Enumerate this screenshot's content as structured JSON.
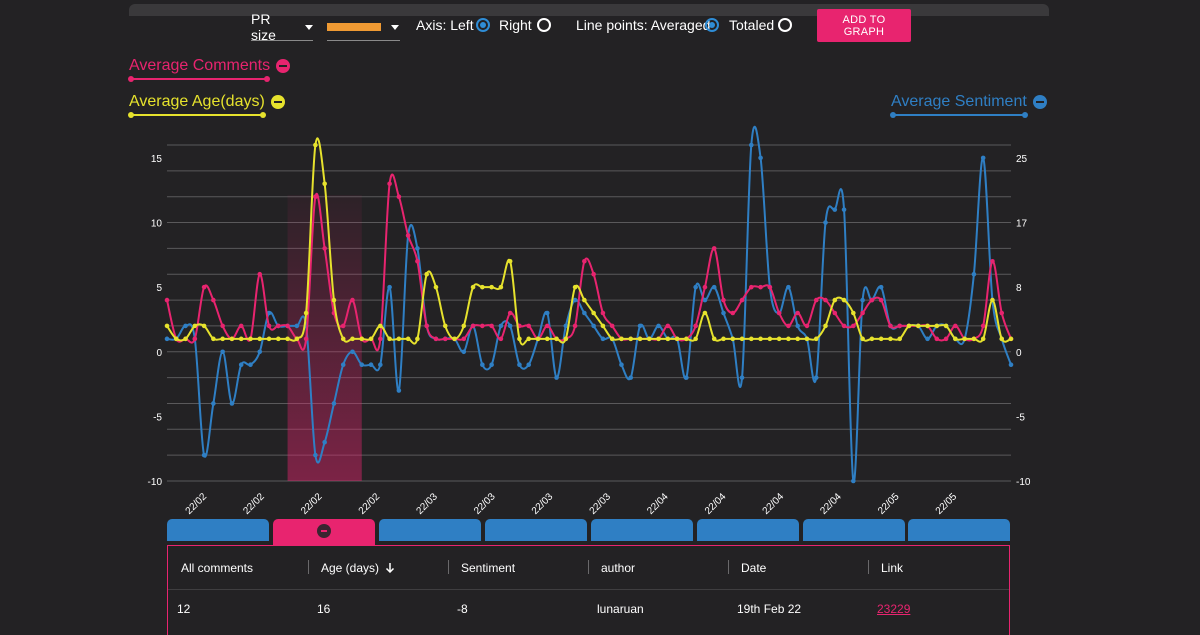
{
  "toolbar": {
    "pr_size_label": "PR size",
    "color_swatch": "#ef9a33",
    "axis_label": "Axis: Left",
    "axis_right_label": "Right",
    "axis_selected": "Left",
    "points_label": "Line points: Averaged",
    "points_totaled_label": "Totaled",
    "points_selected": "Averaged",
    "add_button": "ADD TO GRAPH"
  },
  "legend": {
    "comments": {
      "label": "Average Comments",
      "color": "#e8246f"
    },
    "age": {
      "label": "Average Age(days)",
      "color": "#e6e22d"
    },
    "sentiment": {
      "label": "Average Sentiment",
      "color": "#2f7fc4"
    }
  },
  "chart_data": {
    "type": "line",
    "left_axis": {
      "ticks": [
        "15",
        "10",
        "5",
        "0",
        "-5",
        "-10"
      ],
      "range": [
        -10,
        16
      ]
    },
    "right_axis": {
      "ticks": [
        "25",
        "17",
        "8",
        "0",
        "-5",
        "-10"
      ]
    },
    "x_tick_labels": [
      "22/02",
      "22/02",
      "22/02",
      "22/02",
      "22/03",
      "22/03",
      "22/03",
      "22/03",
      "22/04",
      "22/04",
      "22/04",
      "22/04",
      "22/05",
      "22/05"
    ],
    "highlight_range": [
      13,
      21
    ],
    "series": [
      {
        "name": "Average Comments",
        "color": "#e8246f",
        "values": [
          4,
          1,
          1,
          1,
          5,
          4,
          2,
          1,
          2,
          1,
          6,
          2,
          2,
          2,
          1,
          1,
          12,
          8,
          3,
          2,
          4,
          1,
          1,
          1,
          13,
          12,
          9,
          7,
          2,
          1,
          1,
          1,
          1,
          2,
          2,
          2,
          1,
          3,
          2,
          2,
          1,
          2,
          1,
          1,
          2,
          7,
          6,
          3,
          2,
          1,
          1,
          1,
          1,
          1,
          2,
          1,
          1,
          2,
          5,
          8,
          4,
          3,
          4,
          5,
          5,
          5,
          3,
          2,
          3,
          2,
          4,
          4,
          3,
          2,
          2,
          3,
          4,
          4,
          2,
          2,
          2,
          2,
          2,
          1,
          1,
          2,
          1,
          1,
          2,
          7,
          3,
          1
        ]
      },
      {
        "name": "Average Age(days)",
        "color": "#e6e22d",
        "values": [
          2,
          1,
          1,
          2,
          2,
          1,
          1,
          1,
          1,
          1,
          1,
          1,
          1,
          1,
          1,
          3,
          16,
          13,
          4,
          1,
          1,
          1,
          1,
          2,
          1,
          1,
          1,
          1,
          6,
          5,
          2,
          1,
          2,
          5,
          5,
          5,
          5,
          7,
          1,
          1,
          1,
          1,
          1,
          1,
          5,
          4,
          3,
          2,
          1,
          1,
          1,
          1,
          1,
          1,
          1,
          1,
          1,
          1,
          3,
          1,
          1,
          1,
          1,
          1,
          1,
          1,
          1,
          1,
          1,
          1,
          1,
          2,
          4,
          4,
          3,
          1,
          1,
          1,
          1,
          1,
          2,
          2,
          2,
          2,
          2,
          1,
          1,
          1,
          1,
          4,
          1,
          1
        ]
      },
      {
        "name": "Average Sentiment",
        "color": "#2f7fc4",
        "values": [
          1,
          1,
          2,
          1,
          -8,
          -4,
          0,
          -4,
          -1,
          -1,
          0,
          3,
          2,
          2,
          2,
          2,
          -8,
          -7,
          -4,
          -1,
          0,
          -1,
          -1,
          -1,
          5,
          -3,
          9,
          8,
          2,
          1,
          1,
          1,
          0,
          2,
          -1,
          -1,
          2,
          2,
          -1,
          -1,
          1,
          3,
          -2,
          2,
          4,
          3,
          2,
          1,
          1,
          -1,
          -2,
          2,
          1,
          2,
          1,
          1,
          -2,
          5,
          4,
          5,
          3,
          1,
          -2,
          16,
          15,
          5,
          3,
          5,
          2,
          1,
          -2,
          10,
          11,
          11,
          -10,
          4,
          4,
          5,
          2,
          2,
          2,
          2,
          1,
          2,
          2,
          1,
          1,
          6,
          15,
          4,
          1,
          -1
        ]
      }
    ]
  },
  "tabs": [
    "",
    "",
    "",
    "",
    "",
    "",
    "",
    ""
  ],
  "table": {
    "columns": [
      "All comments",
      "Age (days)",
      "Sentiment",
      "author",
      "Date",
      "Link"
    ],
    "sort_icon": "arrow-down-icon",
    "row": {
      "comments": "12",
      "age": "16",
      "sentiment": "-8",
      "author": "lunaruan",
      "date": "19th Feb 22",
      "link": "23229"
    }
  }
}
